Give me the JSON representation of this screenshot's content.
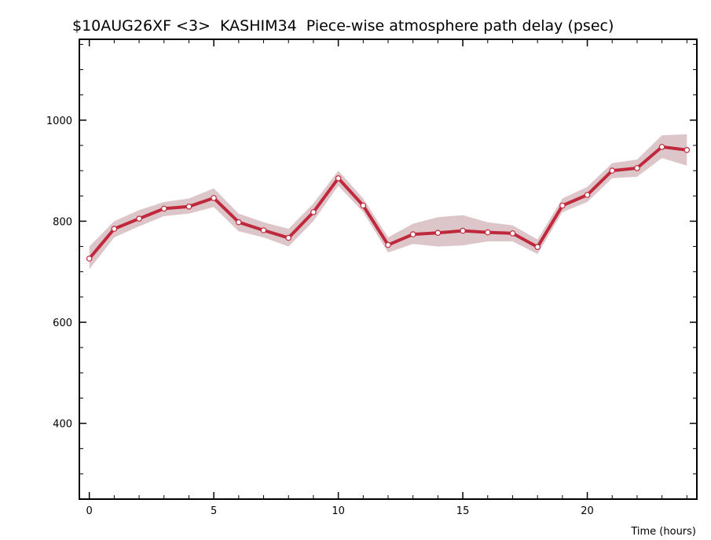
{
  "chart_data": {
    "type": "line",
    "title": "$10AUG26XF <3>  KASHIM34  Piece-wise atmosphere path delay (psec)",
    "xlabel": "Time (hours)",
    "ylabel": "",
    "xlim": [
      -0.4,
      24.4
    ],
    "ylim": [
      250,
      1160
    ],
    "x_ticks": [
      0,
      5,
      10,
      15,
      20
    ],
    "y_ticks": [
      400,
      600,
      800,
      1000
    ],
    "grid": false,
    "colors": {
      "line": "#c0283c",
      "band": "#dcc6ca",
      "marker_fill": "#ffffff",
      "axis": "#000000"
    },
    "series": [
      {
        "x": [
          0,
          1,
          2,
          3,
          4,
          5,
          6,
          7,
          8,
          9,
          10,
          11,
          12,
          13,
          14,
          15,
          16,
          17,
          18,
          19,
          20,
          21,
          22,
          23,
          24
        ],
        "y": [
          726,
          785,
          805,
          825,
          829,
          846,
          798,
          782,
          767,
          818,
          885,
          831,
          753,
          774,
          777,
          781,
          778,
          776,
          749,
          831,
          852,
          900,
          905,
          947,
          941
        ],
        "upper": [
          750,
          800,
          822,
          838,
          845,
          865,
          815,
          798,
          785,
          835,
          900,
          845,
          768,
          795,
          808,
          812,
          798,
          792,
          764,
          845,
          868,
          915,
          922,
          970,
          972
        ],
        "lower": [
          705,
          768,
          790,
          810,
          815,
          828,
          780,
          768,
          750,
          800,
          870,
          818,
          738,
          755,
          750,
          752,
          760,
          760,
          735,
          818,
          838,
          885,
          888,
          925,
          910
        ]
      }
    ]
  }
}
